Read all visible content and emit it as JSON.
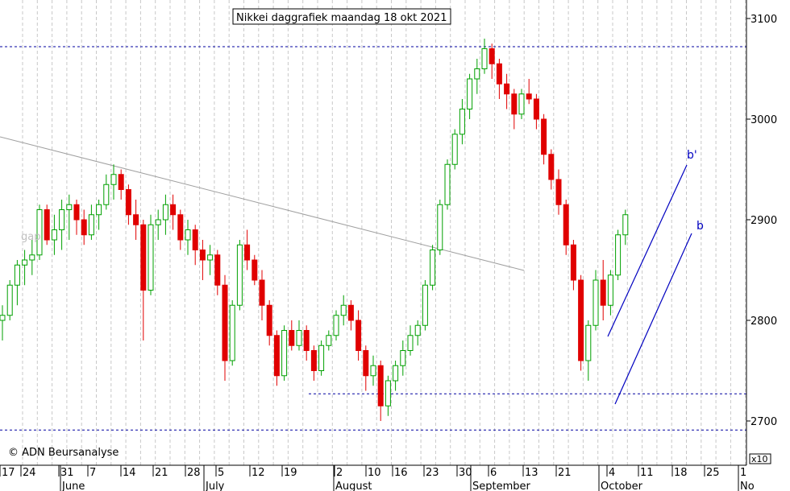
{
  "chart_data": {
    "type": "candlestick",
    "title": "Nikkei daggrafiek maandag 18 okt 2021",
    "copyright": "© ADN Beursanalyse",
    "scale_note": "x10",
    "ylim": [
      2685,
      3115
    ],
    "y_ticks": [
      2700,
      2800,
      2900,
      3000,
      3100
    ],
    "y_tick_labels": [
      "2700",
      "2800",
      "2900",
      "3000",
      "3100"
    ],
    "x_day_labels": [
      "17",
      "24",
      "31",
      "7",
      "14",
      "21",
      "28",
      "5",
      "12",
      "19",
      "2",
      "10",
      "16",
      "23",
      "30",
      "6",
      "13",
      "21",
      "4",
      "11",
      "18",
      "25",
      "1"
    ],
    "x_months": [
      "June",
      "July",
      "August",
      "September",
      "October",
      "No"
    ],
    "horizontal_lines": [
      3072,
      2727,
      2691
    ],
    "annotations": [
      "gap",
      "b'",
      "b"
    ],
    "colors": {
      "up": "#00a000",
      "down": "#e00000",
      "trend": "#a0a0a0",
      "channel": "#0000c0",
      "level": "#0000a0"
    },
    "candles": [
      [
        2800,
        2815,
        2780,
        2805
      ],
      [
        2805,
        2840,
        2800,
        2835
      ],
      [
        2835,
        2860,
        2815,
        2855
      ],
      [
        2855,
        2870,
        2835,
        2860
      ],
      [
        2860,
        2880,
        2845,
        2865
      ],
      [
        2865,
        2915,
        2860,
        2910
      ],
      [
        2910,
        2915,
        2875,
        2880
      ],
      [
        2880,
        2905,
        2865,
        2890
      ],
      [
        2890,
        2920,
        2870,
        2910
      ],
      [
        2910,
        2925,
        2880,
        2915
      ],
      [
        2915,
        2920,
        2885,
        2900
      ],
      [
        2900,
        2910,
        2875,
        2885
      ],
      [
        2885,
        2915,
        2880,
        2905
      ],
      [
        2905,
        2920,
        2890,
        2915
      ],
      [
        2915,
        2945,
        2910,
        2935
      ],
      [
        2935,
        2955,
        2920,
        2945
      ],
      [
        2945,
        2950,
        2920,
        2930
      ],
      [
        2930,
        2935,
        2895,
        2905
      ],
      [
        2905,
        2920,
        2880,
        2895
      ],
      [
        2895,
        2900,
        2780,
        2830
      ],
      [
        2830,
        2905,
        2825,
        2895
      ],
      [
        2895,
        2910,
        2880,
        2900
      ],
      [
        2900,
        2925,
        2885,
        2915
      ],
      [
        2915,
        2925,
        2890,
        2905
      ],
      [
        2905,
        2910,
        2870,
        2880
      ],
      [
        2880,
        2900,
        2865,
        2890
      ],
      [
        2890,
        2895,
        2855,
        2870
      ],
      [
        2870,
        2880,
        2840,
        2860
      ],
      [
        2860,
        2875,
        2845,
        2865
      ],
      [
        2865,
        2870,
        2825,
        2835
      ],
      [
        2835,
        2845,
        2740,
        2760
      ],
      [
        2760,
        2820,
        2755,
        2815
      ],
      [
        2815,
        2880,
        2810,
        2875
      ],
      [
        2875,
        2890,
        2850,
        2860
      ],
      [
        2860,
        2865,
        2835,
        2840
      ],
      [
        2840,
        2850,
        2800,
        2815
      ],
      [
        2815,
        2820,
        2775,
        2785
      ],
      [
        2785,
        2790,
        2735,
        2745
      ],
      [
        2745,
        2795,
        2740,
        2790
      ],
      [
        2790,
        2800,
        2770,
        2775
      ],
      [
        2775,
        2800,
        2770,
        2790
      ],
      [
        2790,
        2795,
        2760,
        2770
      ],
      [
        2770,
        2775,
        2740,
        2750
      ],
      [
        2750,
        2780,
        2745,
        2775
      ],
      [
        2775,
        2790,
        2770,
        2785
      ],
      [
        2785,
        2810,
        2780,
        2805
      ],
      [
        2805,
        2825,
        2795,
        2815
      ],
      [
        2815,
        2820,
        2790,
        2800
      ],
      [
        2800,
        2810,
        2760,
        2770
      ],
      [
        2770,
        2775,
        2730,
        2745
      ],
      [
        2745,
        2765,
        2735,
        2755
      ],
      [
        2755,
        2760,
        2700,
        2715
      ],
      [
        2715,
        2745,
        2705,
        2740
      ],
      [
        2740,
        2760,
        2730,
        2755
      ],
      [
        2755,
        2780,
        2745,
        2770
      ],
      [
        2770,
        2795,
        2765,
        2785
      ],
      [
        2785,
        2800,
        2775,
        2795
      ],
      [
        2795,
        2840,
        2790,
        2835
      ],
      [
        2835,
        2875,
        2830,
        2870
      ],
      [
        2870,
        2920,
        2865,
        2915
      ],
      [
        2915,
        2960,
        2910,
        2955
      ],
      [
        2955,
        2990,
        2950,
        2985
      ],
      [
        2985,
        3020,
        2975,
        3010
      ],
      [
        3010,
        3045,
        3000,
        3040
      ],
      [
        3040,
        3060,
        3025,
        3050
      ],
      [
        3050,
        3080,
        3045,
        3070
      ],
      [
        3070,
        3075,
        3040,
        3055
      ],
      [
        3055,
        3060,
        3020,
        3035
      ],
      [
        3035,
        3045,
        3010,
        3025
      ],
      [
        3025,
        3030,
        2990,
        3005
      ],
      [
        3005,
        3030,
        3000,
        3025
      ],
      [
        3025,
        3040,
        3015,
        3020
      ],
      [
        3020,
        3025,
        2990,
        3000
      ],
      [
        3000,
        3005,
        2955,
        2965
      ],
      [
        2965,
        2970,
        2930,
        2940
      ],
      [
        2940,
        2950,
        2905,
        2915
      ],
      [
        2915,
        2920,
        2865,
        2875
      ],
      [
        2875,
        2880,
        2830,
        2840
      ],
      [
        2840,
        2845,
        2750,
        2760
      ],
      [
        2760,
        2800,
        2740,
        2795
      ],
      [
        2795,
        2850,
        2790,
        2840
      ],
      [
        2840,
        2860,
        2800,
        2815
      ],
      [
        2815,
        2850,
        2805,
        2845
      ],
      [
        2845,
        2890,
        2840,
        2885
      ],
      [
        2885,
        2910,
        2875,
        2905
      ]
    ]
  }
}
